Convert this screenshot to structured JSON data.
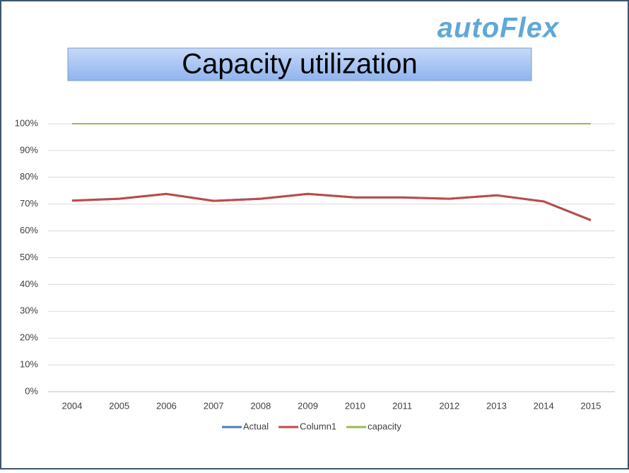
{
  "logo": "autoFlex",
  "chart_data": {
    "type": "line",
    "title": "Capacity utilization",
    "categories": [
      "2004",
      "2005",
      "2006",
      "2007",
      "2008",
      "2009",
      "2010",
      "2011",
      "2012",
      "2013",
      "2014",
      "2015"
    ],
    "series": [
      {
        "name": "Actual",
        "color": "#4a7ebb",
        "values": [
          71.3,
          72,
          73.8,
          71.2,
          72,
          73.8,
          72.5,
          72.5,
          72,
          73.3,
          71,
          64
        ]
      },
      {
        "name": "Column1",
        "color": "#be4b48",
        "values": [
          71.3,
          72,
          73.8,
          71.2,
          72,
          73.8,
          72.5,
          72.5,
          72,
          73.3,
          71,
          64
        ]
      },
      {
        "name": "capacity",
        "color": "#98b954",
        "values": [
          100,
          100,
          100,
          100,
          100,
          100,
          100,
          100,
          100,
          100,
          100,
          100
        ]
      }
    ],
    "ylim": [
      0,
      100
    ],
    "yticks": [
      {
        "value": 0,
        "label": "0%"
      },
      {
        "value": 10,
        "label": "10%"
      },
      {
        "value": 20,
        "label": "20%"
      },
      {
        "value": 30,
        "label": "30%"
      },
      {
        "value": 40,
        "label": "40%"
      },
      {
        "value": 50,
        "label": "50%"
      },
      {
        "value": 60,
        "label": "60%"
      },
      {
        "value": 70,
        "label": "70%"
      },
      {
        "value": 80,
        "label": "80%"
      },
      {
        "value": 90,
        "label": "90%"
      },
      {
        "value": 100,
        "label": "100%"
      }
    ],
    "grid": true,
    "legend": "bottom"
  }
}
